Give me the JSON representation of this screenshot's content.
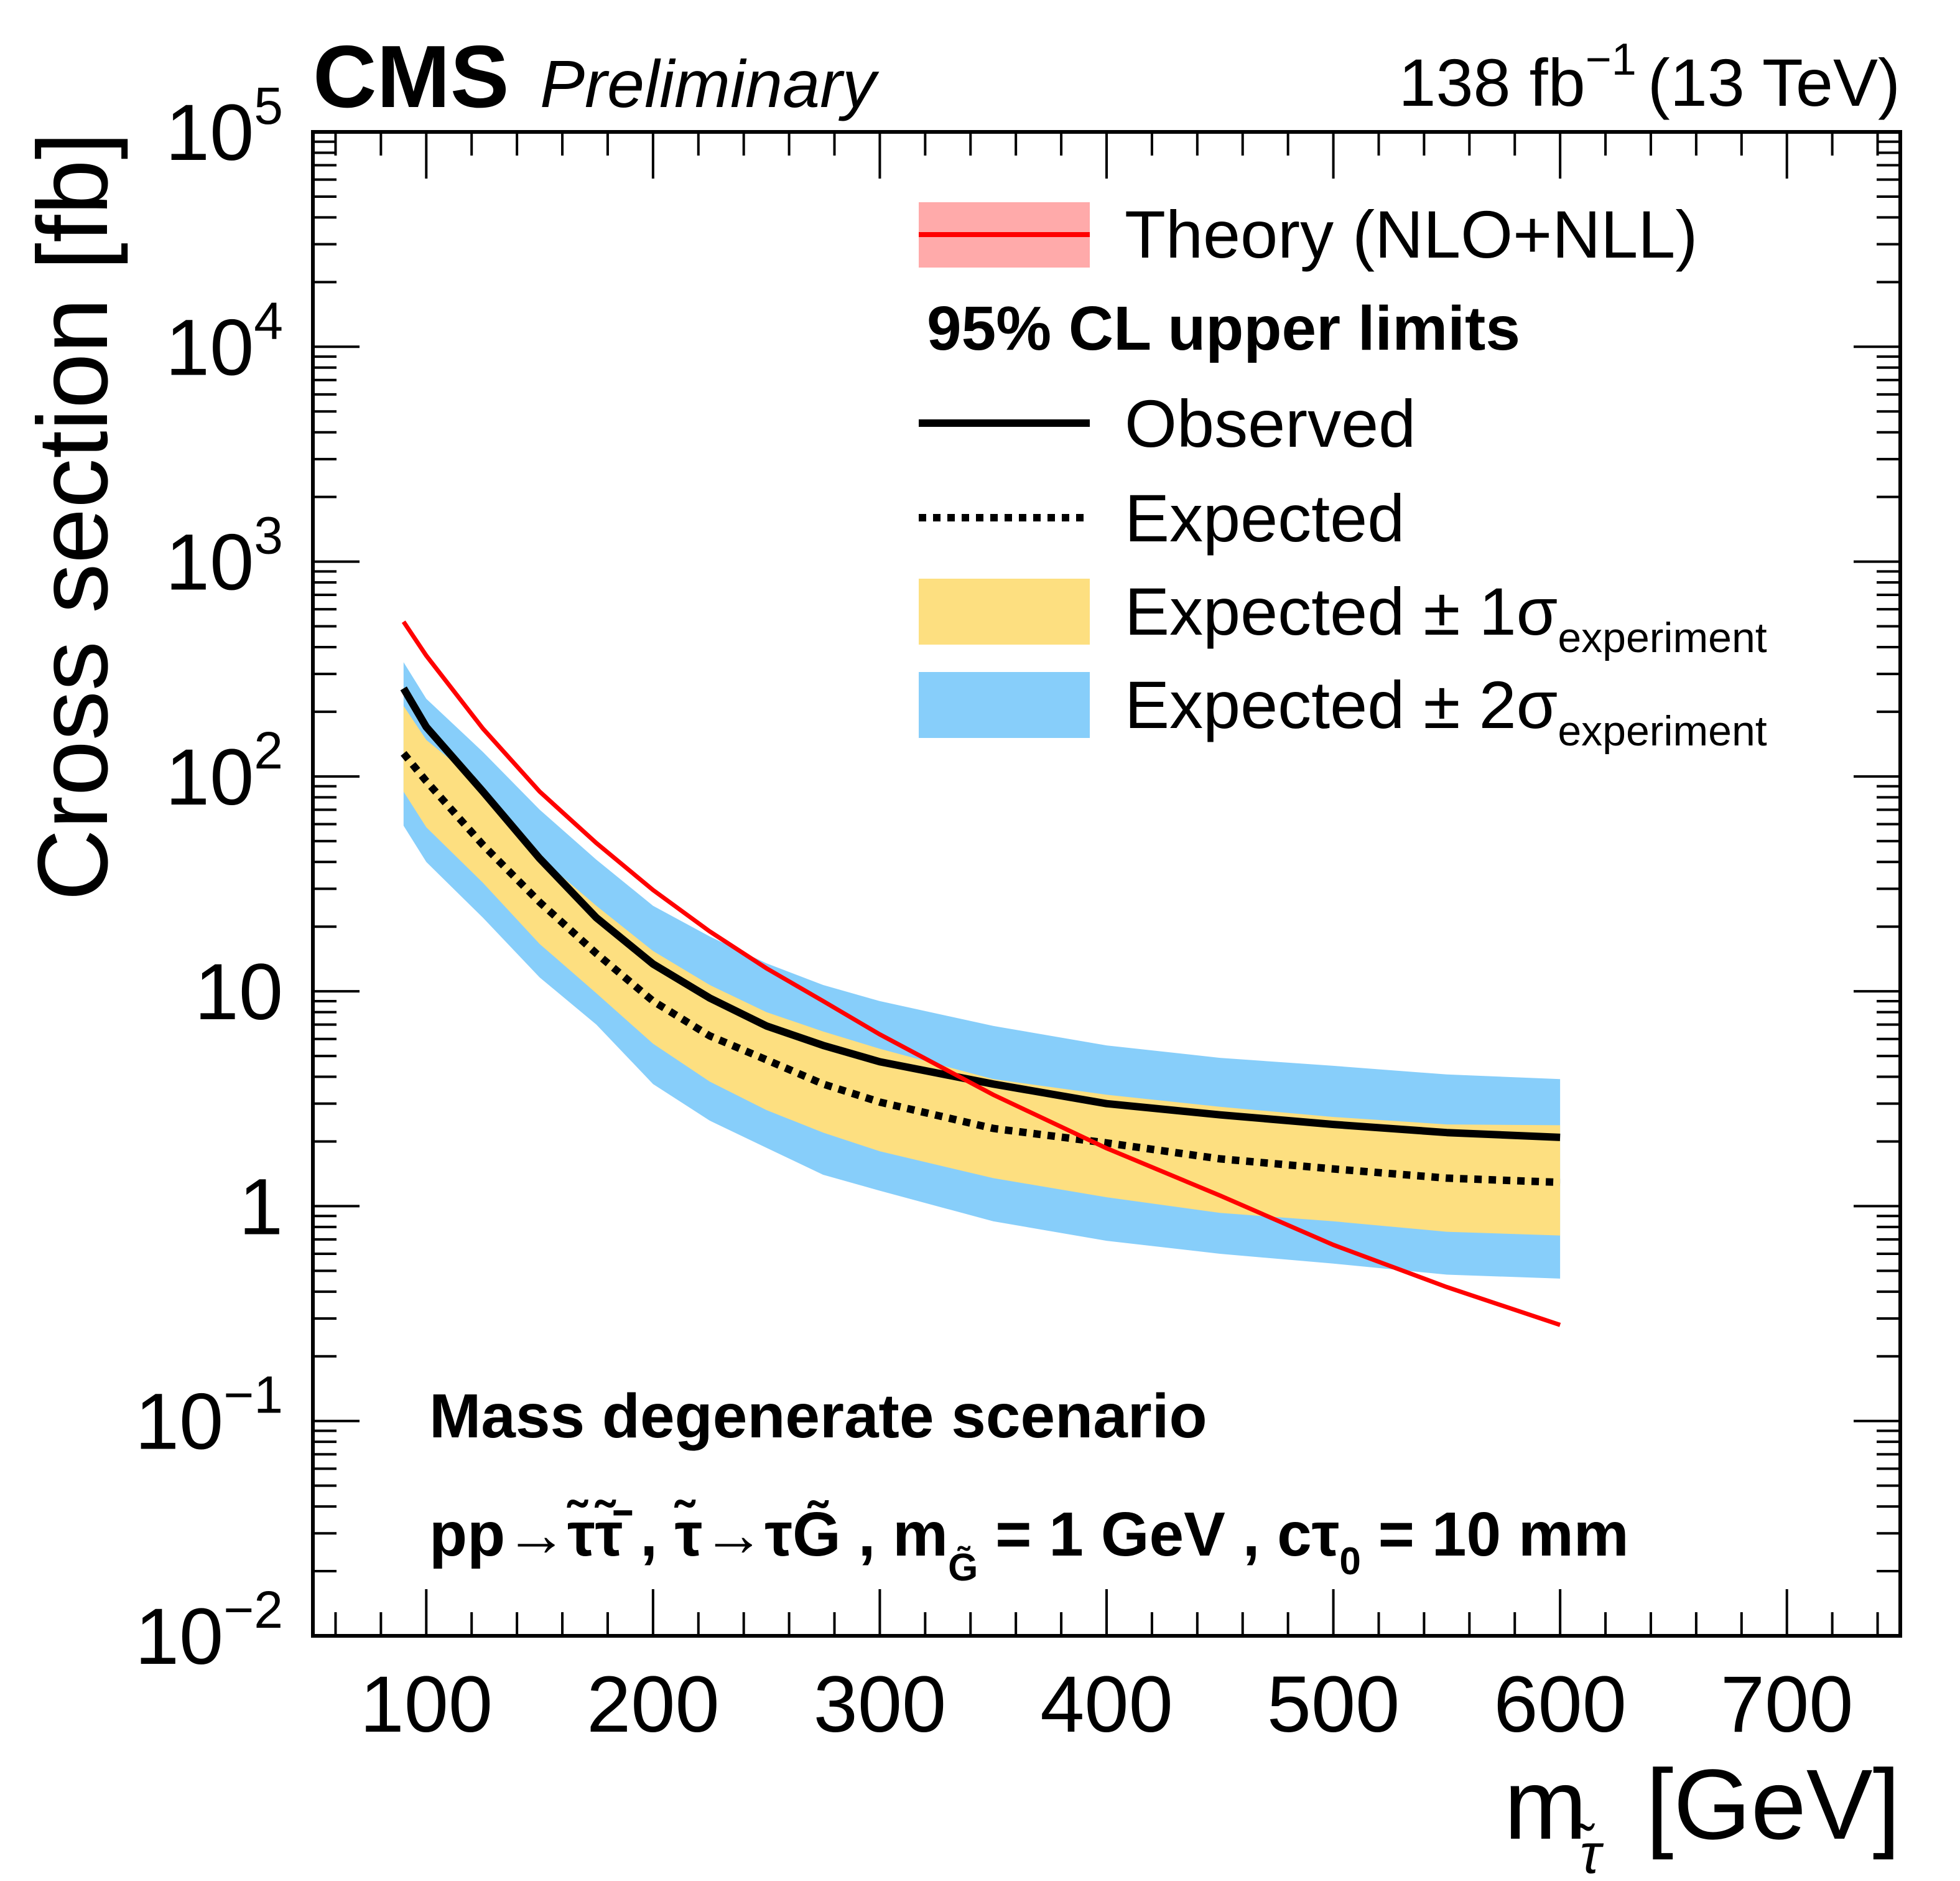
{
  "header": {
    "experiment": "CMS",
    "status": "Preliminary",
    "lumi_value": "138 fb",
    "lumi_exp": "−1",
    "energy": "(13 TeV)"
  },
  "legend": {
    "theory": "Theory (NLO+NLL)",
    "header": "95% CL upper limits",
    "observed": "Observed",
    "expected": "Expected",
    "band1_main": "Expected ± 1σ",
    "band1_sub": "experiment",
    "band2_main": "Expected ± 2σ",
    "band2_sub": "experiment"
  },
  "annotations": {
    "scenario": "Mass degenerate scenario",
    "process": "pp→τ̃τ̃̄ , τ̃→τG̃ , m",
    "process_sub": "G̃",
    "process_rest": " = 1 GeV , cτ",
    "ctau_sub": "0",
    "process_end": " = 10 mm"
  },
  "colors": {
    "theory_line": "#ff0000",
    "theory_band": "#ffaaaa",
    "band1": "#fddf80",
    "band2": "#87cefa",
    "observed": "#000000",
    "expected": "#000000"
  },
  "chart_data": {
    "type": "line",
    "title": "CMS Preliminary",
    "subtitle": "138 fb^-1 (13 TeV)",
    "xlabel": "m_{τ̃} [GeV]",
    "ylabel": "Cross section [fb]",
    "xlim": [
      50,
      750
    ],
    "ylim": [
      0.01,
      100000
    ],
    "yscale": "log",
    "x_ticks": [
      "100",
      "200",
      "300",
      "400",
      "500",
      "600",
      "700"
    ],
    "x_tick_values": [
      100,
      200,
      300,
      400,
      500,
      600,
      700
    ],
    "y_ticks": [
      {
        "value": 100000,
        "base": "10",
        "exp": "5"
      },
      {
        "value": 10000,
        "base": "10",
        "exp": "4"
      },
      {
        "value": 1000,
        "base": "10",
        "exp": "3"
      },
      {
        "value": 100,
        "base": "10",
        "exp": "2"
      },
      {
        "value": 10,
        "base": "10",
        "exp": ""
      },
      {
        "value": 1,
        "base": "1",
        "exp": ""
      },
      {
        "value": 0.1,
        "base": "10",
        "exp": "−1"
      },
      {
        "value": 0.01,
        "base": "10",
        "exp": "−2"
      }
    ],
    "grid": false,
    "legend_position": "top-right",
    "x": [
      90,
      100,
      125,
      150,
      175,
      200,
      225,
      250,
      275,
      300,
      350,
      400,
      450,
      500,
      550,
      600
    ],
    "series": [
      {
        "name": "Observed",
        "values": [
          257,
          170,
          85,
          41.5,
          22,
          13.4,
          9.3,
          6.9,
          5.6,
          4.7,
          3.7,
          3.0,
          2.66,
          2.4,
          2.2,
          2.09
        ]
      },
      {
        "name": "Expected",
        "values": [
          128,
          95,
          48,
          26,
          15,
          9.0,
          6.2,
          4.8,
          3.7,
          3.05,
          2.3,
          1.97,
          1.66,
          1.49,
          1.35,
          1.29
        ]
      },
      {
        "name": "Expected +1sigma",
        "values": [
          213,
          148,
          90,
          42,
          25,
          15.4,
          10.7,
          8.0,
          6.5,
          5.4,
          3.9,
          3.3,
          2.9,
          2.6,
          2.4,
          2.38
        ]
      },
      {
        "name": "Expected -1sigma",
        "values": [
          85,
          58,
          32,
          16.6,
          9.8,
          5.7,
          3.8,
          2.8,
          2.2,
          1.8,
          1.35,
          1.1,
          0.93,
          0.85,
          0.76,
          0.73
        ]
      },
      {
        "name": "Expected +2sigma",
        "values": [
          340,
          230,
          130,
          70,
          41,
          25,
          18,
          13.5,
          10.7,
          9.0,
          6.9,
          5.6,
          4.9,
          4.5,
          4.1,
          3.9
        ]
      },
      {
        "name": "Expected -2sigma",
        "values": [
          59,
          40,
          22,
          11.6,
          7.0,
          3.7,
          2.5,
          1.87,
          1.4,
          1.18,
          0.85,
          0.69,
          0.6,
          0.54,
          0.48,
          0.46
        ]
      },
      {
        "name": "Theory (NLO+NLL)",
        "values": [
          525,
          365,
          167,
          85,
          49,
          29.6,
          19,
          12.8,
          9.0,
          6.3,
          3.3,
          1.86,
          1.12,
          0.66,
          0.42,
          0.28
        ]
      }
    ]
  }
}
